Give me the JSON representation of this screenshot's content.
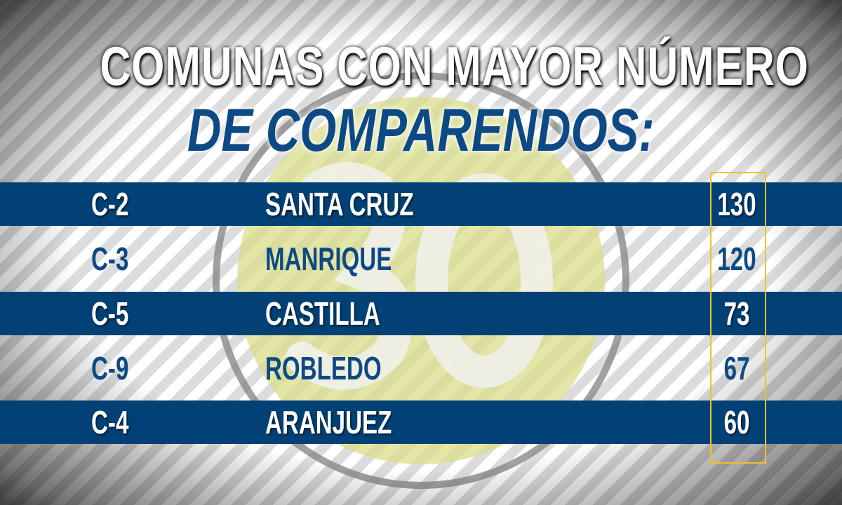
{
  "title": {
    "line1": "COMUNAS CON MAYOR NÚMERO",
    "line2": "DE COMPARENDOS:"
  },
  "colors": {
    "band": "#014175",
    "accent_text": "#0d4a85",
    "highlight_box": "#f2c029",
    "logo_fill": "#d9dd8a"
  },
  "logo": {
    "text": "30"
  },
  "rows": [
    {
      "code": "C-2",
      "name": "SANTA CRUZ",
      "count": "130"
    },
    {
      "code": "C-3",
      "name": "MANRIQUE",
      "count": "120"
    },
    {
      "code": "C-5",
      "name": "CASTILLA",
      "count": "73"
    },
    {
      "code": "C-9",
      "name": "ROBLEDO",
      "count": "67"
    },
    {
      "code": "C-4",
      "name": "ARANJUEZ",
      "count": "60"
    }
  ]
}
